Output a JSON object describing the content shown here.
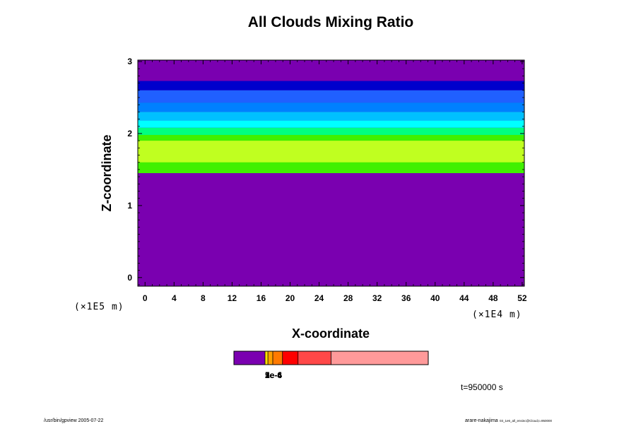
{
  "chart_data": {
    "type": "heatmap",
    "title": "All Clouds Mixing Ratio",
    "xlabel": "X-coordinate",
    "ylabel": "Z-coordinate",
    "x_unit": "(×1E4 m)",
    "y_unit": "(×1E5 m)",
    "x_ticks": [
      "0",
      "4",
      "8",
      "12",
      "16",
      "20",
      "24",
      "28",
      "32",
      "36",
      "40",
      "44",
      "48",
      "52"
    ],
    "y_ticks": [
      "0",
      "1",
      "2",
      "3"
    ],
    "xlim": [
      -1,
      52.3
    ],
    "ylim": [
      -0.12,
      3.02
    ],
    "layers": [
      {
        "name": "background",
        "color": "#7a00b0",
        "z_range": [
          -0.12,
          3.02
        ]
      },
      {
        "name": "upper-deep-blue",
        "color": "#0000cc",
        "z_range": [
          2.6,
          2.73
        ]
      },
      {
        "name": "upper-blue",
        "color": "#2060ff",
        "z_range": [
          2.43,
          2.6
        ]
      },
      {
        "name": "mid-blue",
        "color": "#0080ff",
        "z_range": [
          2.3,
          2.43
        ]
      },
      {
        "name": "light-blue",
        "color": "#00c0ff",
        "z_range": [
          2.18,
          2.3
        ]
      },
      {
        "name": "cyan",
        "color": "#00ffff",
        "z_range": [
          2.08,
          2.18
        ]
      },
      {
        "name": "green",
        "color": "#00ff80",
        "z_range": [
          1.98,
          2.08
        ]
      },
      {
        "name": "bright-green",
        "color": "#40f000",
        "z_range": [
          1.45,
          1.98
        ]
      },
      {
        "name": "yellow-green",
        "color": "#c0ff20",
        "z_range": [
          1.6,
          1.9
        ]
      }
    ],
    "colorbar": {
      "colors": [
        "#7a00b0",
        "#ffe000",
        "#ffa000",
        "#ff7a00",
        "#ff0000",
        "#ff4848",
        "#ff9a9a"
      ],
      "bounds": [
        0,
        0.16,
        0.175,
        0.2,
        0.25,
        0.33,
        0.5,
        1.0
      ],
      "labels": [
        "1e-6",
        "2e-6",
        "5e-4"
      ]
    },
    "time_label": "t=950000 s",
    "footer_left": "/usr/bin/gpview 2005-07-22",
    "footer_right_main": "arare-nakajima",
    "footer_right_small": "03_1e6_all_ensinc@Cloud,t=950000"
  }
}
